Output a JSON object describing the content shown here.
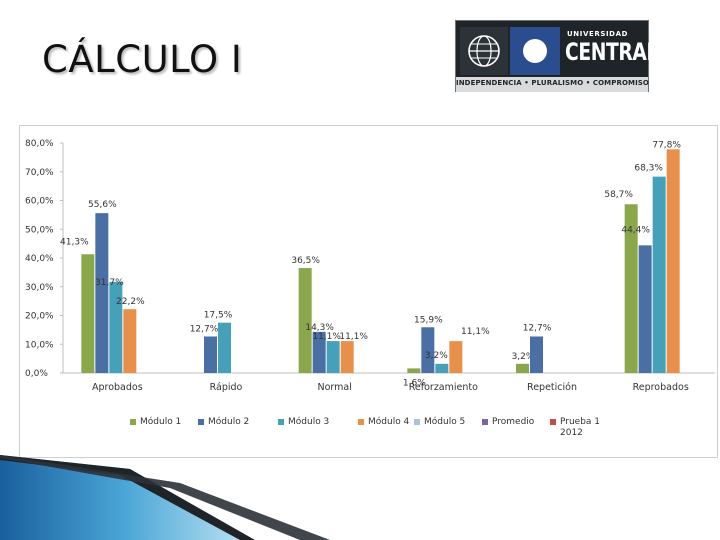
{
  "slide": {
    "title": "CÁLCULO I"
  },
  "logo": {
    "line1": "UNIVERSIDAD",
    "line2": "CENTRAL",
    "motto": "INDEPENDENCIA • PLURALISMO • COMPROMISO"
  },
  "chart_data": {
    "type": "bar",
    "title": "",
    "xlabel": "",
    "ylabel": "",
    "ylim": [
      0,
      80
    ],
    "y_ticks": [
      "0,0%",
      "10,0%",
      "20,0%",
      "30,0%",
      "40,0%",
      "50,0%",
      "60,0%",
      "70,0%",
      "80,0%"
    ],
    "grid": false,
    "legend_position": "bottom",
    "categories": [
      "Aprobados",
      "Rápido",
      "Normal",
      "Reforzamiento",
      "Repetición",
      "Reprobados"
    ],
    "series": [
      {
        "name": "Módulo 1",
        "color": "#8aa84b",
        "values": [
          41.3,
          null,
          36.5,
          1.6,
          3.2,
          58.7
        ],
        "labels": [
          "41,3%",
          "",
          "36,5%",
          "1,6%",
          "3,2%",
          "58,7%"
        ]
      },
      {
        "name": "Módulo 2",
        "color": "#4a6fa5",
        "values": [
          55.6,
          12.7,
          14.3,
          15.9,
          12.7,
          44.4
        ],
        "labels": [
          "55,6%",
          "12,7%",
          "14,3%",
          "15,9%",
          "12,7%",
          "44,4%"
        ]
      },
      {
        "name": "Módulo 3",
        "color": "#45a0b9",
        "values": [
          31.7,
          17.5,
          11.1,
          3.2,
          null,
          68.3
        ],
        "labels": [
          "31,7%",
          "17,5%",
          "11,1%",
          "3,2%",
          "",
          "68,3%"
        ]
      },
      {
        "name": "Módulo 4",
        "color": "#e8904a",
        "values": [
          22.2,
          null,
          11.1,
          11.1,
          null,
          77.8
        ],
        "labels": [
          "22,2%",
          "",
          "11,1%",
          "11,1%",
          "",
          "77,8%"
        ]
      },
      {
        "name": "Módulo 5",
        "color": "#a9c2e2",
        "values": [
          null,
          null,
          null,
          null,
          null,
          null
        ],
        "labels": [
          "",
          "",
          "",
          "",
          "",
          ""
        ]
      },
      {
        "name": "Promedio",
        "color": "#7c63a3",
        "values": [
          null,
          null,
          null,
          null,
          null,
          null
        ],
        "labels": [
          "",
          "",
          "",
          "",
          "",
          ""
        ]
      },
      {
        "name": "Prueba 1 2012",
        "color": "#c0504d",
        "values": [
          null,
          null,
          null,
          null,
          null,
          null
        ],
        "labels": [
          "",
          "",
          "",
          "",
          "",
          ""
        ]
      }
    ]
  },
  "legend": {
    "items": [
      {
        "label": "Módulo 1",
        "color": "#8aa84b"
      },
      {
        "label": "Módulo 2",
        "color": "#4a6fa5"
      },
      {
        "label": "Módulo 3",
        "color": "#45a0b9"
      },
      {
        "label": "Módulo 4",
        "color": "#e8904a"
      },
      {
        "label": "Módulo 5",
        "color": "#a9c2e2"
      },
      {
        "label": "Promedio",
        "color": "#7c63a3"
      },
      {
        "label": "Prueba 1",
        "sublabel": "2012",
        "color": "#c0504d"
      }
    ]
  }
}
